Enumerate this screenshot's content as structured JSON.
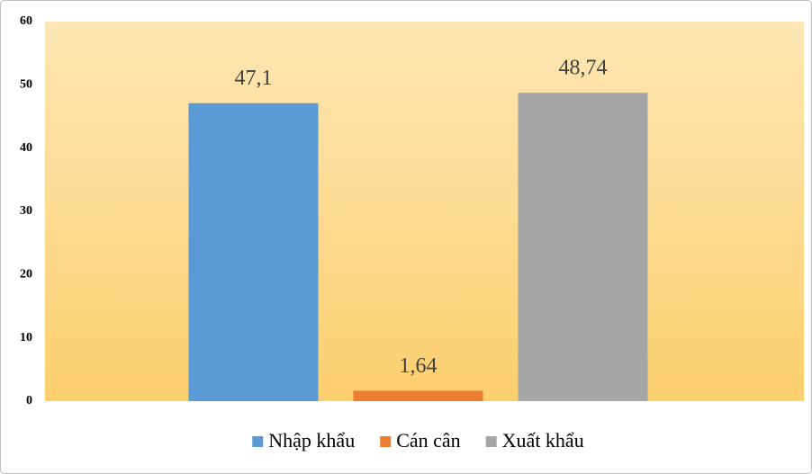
{
  "chart_data": {
    "type": "bar",
    "categories": [
      null
    ],
    "series": [
      {
        "name": "Nhập khẩu",
        "color": "#5b9bd5",
        "values": [
          47.1
        ],
        "value_labels": [
          "47,1"
        ]
      },
      {
        "name": "Cán cân",
        "color": "#ed7d31",
        "values": [
          1.64
        ],
        "value_labels": [
          "1,64"
        ]
      },
      {
        "name": "Xuất khẩu",
        "color": "#a5a5a5",
        "values": [
          48.74
        ],
        "value_labels": [
          "48,74"
        ]
      }
    ],
    "ylim": [
      0,
      60
    ],
    "yticks": [
      0,
      10,
      20,
      30,
      40,
      50,
      60
    ],
    "grid": false,
    "legend": "bottom"
  }
}
